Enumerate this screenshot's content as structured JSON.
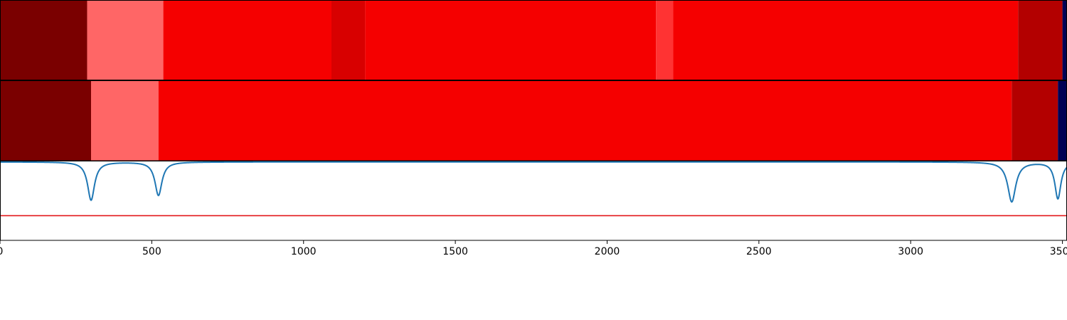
{
  "chart_data": {
    "type": "heatmap",
    "title": "",
    "xlabel": "",
    "ylabel": "",
    "xlim": [
      0,
      3515
    ],
    "xticks": [
      0,
      500,
      1000,
      1500,
      2000,
      2500,
      3000,
      3500
    ],
    "x_tick_labels": [
      "0",
      "500",
      "1000",
      "1500",
      "2000",
      "2500",
      "3000",
      "3500"
    ],
    "grid": false,
    "legend": "none",
    "segment_tracks": [
      {
        "name": "",
        "segments": [
          {
            "start": 0,
            "end": 287,
            "color": "#7a0000"
          },
          {
            "start": 287,
            "end": 538,
            "color": "#ff6666"
          },
          {
            "start": 538,
            "end": 1092,
            "color": "#f50000"
          },
          {
            "start": 1092,
            "end": 1203,
            "color": "#d80000"
          },
          {
            "start": 1203,
            "end": 2161,
            "color": "#f50000"
          },
          {
            "start": 2161,
            "end": 2218,
            "color": "#ff3333"
          },
          {
            "start": 2218,
            "end": 3354,
            "color": "#f50000"
          },
          {
            "start": 3354,
            "end": 3500,
            "color": "#b30000"
          },
          {
            "start": 3500,
            "end": 3515,
            "color": "#000055"
          }
        ]
      },
      {
        "name": "",
        "segments": [
          {
            "start": 0,
            "end": 300,
            "color": "#7a0000"
          },
          {
            "start": 300,
            "end": 522,
            "color": "#ff6666"
          },
          {
            "start": 522,
            "end": 3333,
            "color": "#f50000"
          },
          {
            "start": 3333,
            "end": 3485,
            "color": "#b30000"
          },
          {
            "start": 3485,
            "end": 3515,
            "color": "#000055"
          }
        ]
      }
    ],
    "series": [
      {
        "name": "",
        "type": "line",
        "color": "#1f77b4",
        "ylim": [
          0,
          1
        ],
        "baseline": 0.985,
        "dips": [
          {
            "x": 300,
            "depth": 0.48,
            "width": 14
          },
          {
            "x": 522,
            "depth": 0.42,
            "width": 14
          },
          {
            "x": 3333,
            "depth": 0.5,
            "width": 16
          },
          {
            "x": 3485,
            "depth": 0.46,
            "width": 12
          }
        ]
      }
    ],
    "threshold_line": {
      "y": 0.31,
      "color": "#e31a1c"
    }
  }
}
